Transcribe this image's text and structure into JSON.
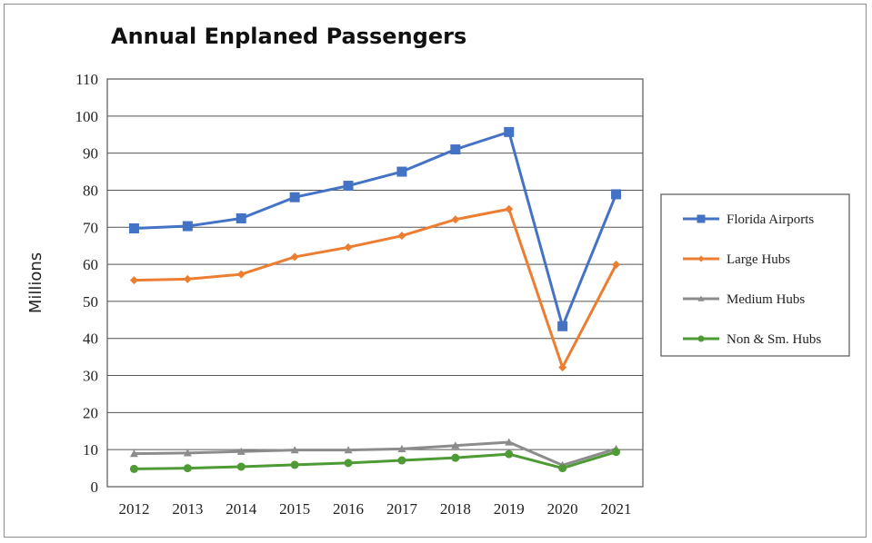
{
  "chart_data": {
    "type": "line",
    "title": "Annual Enplaned Passengers",
    "xlabel": "",
    "ylabel": "Millions",
    "x": [
      "2012",
      "2013",
      "2014",
      "2015",
      "2016",
      "2017",
      "2018",
      "2019",
      "2020",
      "2021"
    ],
    "ylim": [
      0,
      110
    ],
    "yticks": [
      0,
      10,
      20,
      30,
      40,
      50,
      60,
      70,
      80,
      90,
      100,
      110
    ],
    "grid": "horizontal",
    "legend_position": "right",
    "series": [
      {
        "name": "Florida Airports",
        "color": "#4472c4",
        "marker": "square",
        "values": [
          69.7,
          70.3,
          72.4,
          78.1,
          81.2,
          85.0,
          91.0,
          95.7,
          43.3,
          78.9
        ]
      },
      {
        "name": "Large Hubs",
        "color": "#ed7d31",
        "marker": "diamond",
        "values": [
          55.7,
          56.0,
          57.3,
          62.0,
          64.6,
          67.7,
          72.1,
          74.9,
          32.2,
          59.9
        ]
      },
      {
        "name": "Medium Hubs",
        "color": "#8c8c8c",
        "marker": "triangle",
        "values": [
          8.9,
          9.1,
          9.5,
          9.9,
          9.9,
          10.2,
          11.1,
          12.0,
          5.8,
          10.2
        ]
      },
      {
        "name": "Non & Sm. Hubs",
        "color": "#4e9a34",
        "marker": "circle",
        "values": [
          4.8,
          5.0,
          5.4,
          5.9,
          6.4,
          7.1,
          7.8,
          8.8,
          5.0,
          9.4
        ]
      }
    ]
  }
}
